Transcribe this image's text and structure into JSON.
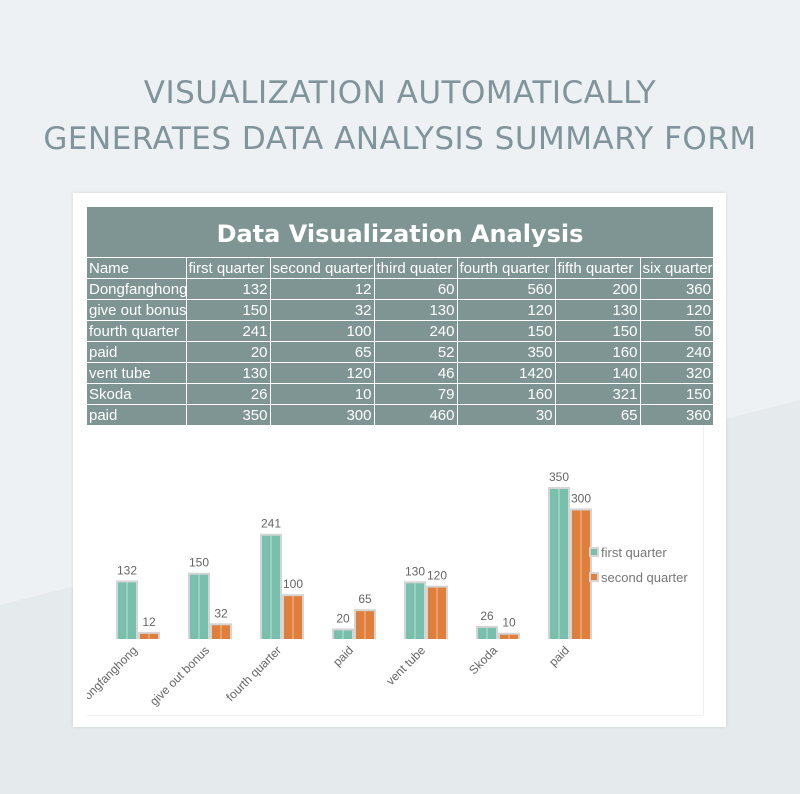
{
  "page": {
    "headline_line1": "VISUALIZATION AUTOMATICALLY",
    "headline_line2": "GENERATES DATA ANALYSIS SUMMARY FORM"
  },
  "table": {
    "title": "Data Visualization Analysis",
    "headers": [
      "Name",
      "first quarter",
      "second quarter",
      "third quater",
      "fourth quarter",
      "fifth quarter",
      "six quarter"
    ],
    "rows": [
      [
        "Dongfanghong",
        "132",
        "12",
        "60",
        "560",
        "200",
        "360"
      ],
      [
        "give out bonus",
        "150",
        "32",
        "130",
        "120",
        "130",
        "120"
      ],
      [
        "fourth quarter",
        "241",
        "100",
        "240",
        "150",
        "150",
        "50"
      ],
      [
        "paid",
        "20",
        "65",
        "52",
        "350",
        "160",
        "240"
      ],
      [
        "vent tube",
        "130",
        "120",
        "46",
        "1420",
        "140",
        "320"
      ],
      [
        "Skoda",
        "26",
        "10",
        "79",
        "160",
        "321",
        "150"
      ],
      [
        "paid",
        "350",
        "300",
        "460",
        "30",
        "65",
        "360"
      ]
    ]
  },
  "colors": {
    "header_bg": "#7f9593",
    "series1": "#79bfae",
    "series2": "#de7f3c",
    "bar_frame": "#d5d5d5"
  },
  "chart_data": {
    "type": "bar",
    "categories": [
      "Dongfanghong",
      "give out bonus",
      "fourth quarter",
      "paid",
      "vent tube",
      "Skoda",
      "paid"
    ],
    "series": [
      {
        "name": "first quarter",
        "values": [
          132,
          150,
          241,
          20,
          130,
          26,
          350
        ]
      },
      {
        "name": "second quarter",
        "values": [
          12,
          32,
          100,
          65,
          120,
          10,
          300
        ]
      }
    ],
    "ylim": [
      0,
      350
    ],
    "legend_position": "right",
    "grid": false,
    "data_labels": true
  }
}
